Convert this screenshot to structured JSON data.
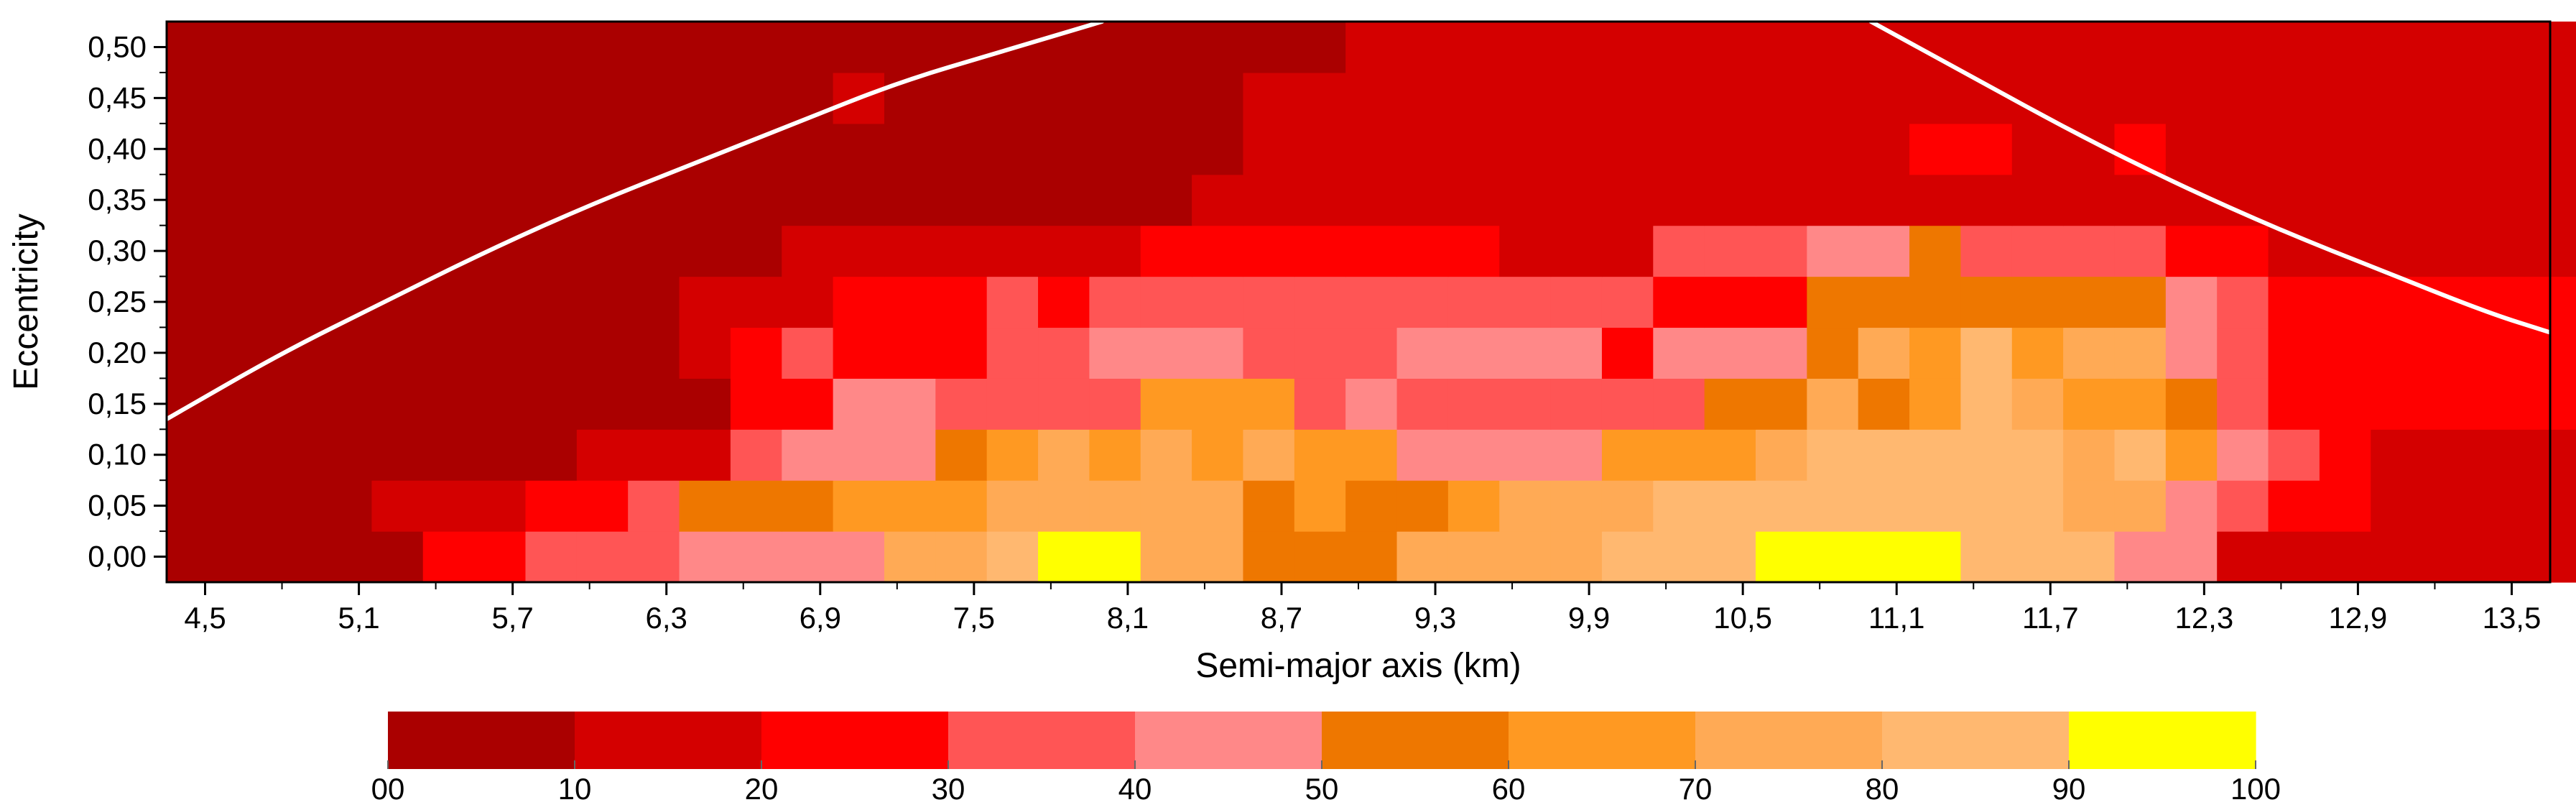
{
  "chart_data": {
    "type": "heatmap",
    "xlabel": "Semi-major axis (km)",
    "ylabel": "Eccentricity",
    "xlim": [
      4.35,
      13.65
    ],
    "ylim": [
      -0.025,
      0.525
    ],
    "x_tick_values": [
      4.5,
      5.1,
      5.7,
      6.3,
      6.9,
      7.5,
      8.1,
      8.7,
      9.3,
      9.9,
      10.5,
      11.1,
      11.7,
      12.3,
      12.9,
      13.5
    ],
    "x_tick_labels": [
      "4,5",
      "5,1",
      "5,7",
      "6,3",
      "6,9",
      "7,5",
      "8,1",
      "8,7",
      "9,3",
      "9,9",
      "10,5",
      "11,1",
      "11,7",
      "12,3",
      "12,9",
      "13,5"
    ],
    "y_tick_values": [
      0,
      0.05,
      0.1,
      0.15,
      0.2,
      0.25,
      0.3,
      0.35,
      0.4,
      0.45,
      0.5
    ],
    "y_tick_labels": [
      "0,00",
      "0,05",
      "0,10",
      "0,15",
      "0,20",
      "0,25",
      "0,30",
      "0,35",
      "0,40",
      "0,45",
      "0,50"
    ],
    "x_cell_start": 4.35,
    "x_cell_step": 0.2,
    "y_cell_start": -0.025,
    "y_cell_step": 0.05,
    "colorbar": {
      "labels": [
        "00",
        "10",
        "20",
        "30",
        "40",
        "50",
        "60",
        "70",
        "80",
        "90",
        "100"
      ],
      "colors": [
        "#aa0000",
        "#d40000",
        "#ff0000",
        "#ff5555",
        "#ff8888",
        "#ee7700",
        "#ff9922",
        "#ffaa55",
        "#ffb870",
        "#ffff00"
      ]
    },
    "curve_color": "#ffffff",
    "curves": [
      {
        "name": "left-boundary",
        "x": [
          4.35,
          4.8,
          5.2,
          5.6,
          6.0,
          6.4,
          6.8,
          7.2,
          7.6,
          8.0
        ],
        "y": [
          0.135,
          0.2,
          0.25,
          0.3,
          0.345,
          0.385,
          0.425,
          0.465,
          0.495,
          0.525
        ]
      },
      {
        "name": "right-boundary",
        "x": [
          11.0,
          11.4,
          11.8,
          12.2,
          12.6,
          13.0,
          13.4,
          13.65
        ],
        "y": [
          0.525,
          0.47,
          0.415,
          0.365,
          0.32,
          0.28,
          0.24,
          0.22
        ]
      }
    ],
    "grid_values": [
      [
        0,
        0,
        0,
        0,
        0,
        2,
        2,
        3,
        3,
        3,
        4,
        4,
        4,
        4,
        7,
        7,
        8,
        9,
        9,
        7,
        7,
        5,
        5,
        5,
        7,
        7,
        7,
        7,
        8,
        8,
        8,
        9,
        9,
        9,
        9,
        8,
        8,
        8,
        4,
        4,
        1,
        1,
        1,
        1,
        1,
        1,
        1
      ],
      [
        0,
        0,
        0,
        0,
        1,
        1,
        1,
        2,
        2,
        3,
        5,
        5,
        5,
        6,
        6,
        6,
        7,
        7,
        7,
        7,
        7,
        5,
        6,
        5,
        5,
        6,
        7,
        7,
        7,
        8,
        8,
        8,
        8,
        8,
        8,
        8,
        8,
        7,
        7,
        4,
        3,
        2,
        2,
        1,
        1,
        1,
        1
      ],
      [
        0,
        0,
        0,
        0,
        0,
        0,
        0,
        0,
        1,
        1,
        1,
        3,
        4,
        4,
        4,
        5,
        6,
        7,
        6,
        7,
        6,
        7,
        6,
        6,
        4,
        4,
        4,
        4,
        6,
        6,
        6,
        7,
        8,
        8,
        8,
        8,
        8,
        7,
        8,
        6,
        4,
        3,
        2,
        1,
        1,
        1,
        1
      ],
      [
        0,
        0,
        0,
        0,
        0,
        0,
        0,
        0,
        0,
        0,
        0,
        2,
        2,
        4,
        4,
        3,
        3,
        3,
        3,
        6,
        6,
        6,
        3,
        4,
        3,
        3,
        3,
        3,
        3,
        3,
        5,
        5,
        7,
        5,
        6,
        8,
        7,
        6,
        6,
        5,
        3,
        2,
        2,
        2,
        2,
        2,
        2
      ],
      [
        0,
        0,
        0,
        0,
        0,
        0,
        0,
        0,
        0,
        0,
        1,
        2,
        3,
        2,
        2,
        2,
        3,
        3,
        4,
        4,
        4,
        3,
        3,
        3,
        4,
        4,
        4,
        4,
        2,
        4,
        4,
        4,
        5,
        7,
        6,
        8,
        6,
        7,
        7,
        4,
        3,
        2,
        2,
        2,
        2,
        2,
        2
      ],
      [
        0,
        0,
        0,
        0,
        0,
        0,
        0,
        0,
        0,
        0,
        1,
        1,
        1,
        2,
        2,
        2,
        3,
        2,
        3,
        3,
        3,
        3,
        3,
        3,
        3,
        3,
        3,
        3,
        3,
        2,
        2,
        2,
        5,
        5,
        5,
        5,
        5,
        5,
        5,
        4,
        3,
        2,
        2,
        2,
        2,
        2,
        2
      ],
      [
        0,
        0,
        0,
        0,
        0,
        0,
        0,
        0,
        0,
        0,
        0,
        0,
        1,
        1,
        1,
        1,
        1,
        1,
        1,
        2,
        2,
        2,
        2,
        2,
        2,
        2,
        1,
        1,
        1,
        3,
        3,
        3,
        4,
        4,
        5,
        3,
        3,
        3,
        3,
        2,
        2,
        1,
        1,
        1,
        1,
        1,
        1
      ],
      [
        0,
        0,
        0,
        0,
        0,
        0,
        0,
        0,
        0,
        0,
        0,
        0,
        0,
        0,
        0,
        0,
        0,
        0,
        0,
        0,
        1,
        1,
        1,
        1,
        1,
        1,
        1,
        1,
        1,
        1,
        1,
        1,
        1,
        1,
        1,
        1,
        1,
        1,
        1,
        1,
        1,
        1,
        1,
        1,
        1,
        1,
        1
      ],
      [
        0,
        0,
        0,
        0,
        0,
        0,
        0,
        0,
        0,
        0,
        0,
        0,
        0,
        0,
        0,
        0,
        0,
        0,
        0,
        0,
        0,
        1,
        1,
        1,
        1,
        1,
        1,
        1,
        1,
        1,
        1,
        1,
        1,
        1,
        2,
        2,
        1,
        1,
        2,
        1,
        1,
        1,
        1,
        1,
        1,
        1,
        1
      ],
      [
        0,
        0,
        0,
        0,
        0,
        0,
        0,
        0,
        0,
        0,
        0,
        0,
        0,
        1,
        0,
        0,
        0,
        0,
        0,
        0,
        0,
        1,
        1,
        1,
        1,
        1,
        1,
        1,
        1,
        1,
        1,
        1,
        1,
        1,
        1,
        1,
        1,
        1,
        1,
        1,
        1,
        1,
        1,
        1,
        1,
        1,
        1
      ],
      [
        0,
        0,
        0,
        0,
        0,
        0,
        0,
        0,
        0,
        0,
        0,
        0,
        0,
        0,
        0,
        0,
        0,
        0,
        0,
        0,
        0,
        0,
        0,
        1,
        1,
        1,
        1,
        1,
        1,
        1,
        1,
        1,
        1,
        1,
        1,
        1,
        1,
        1,
        1,
        1,
        1,
        1,
        1,
        1,
        1,
        1,
        1
      ]
    ]
  }
}
